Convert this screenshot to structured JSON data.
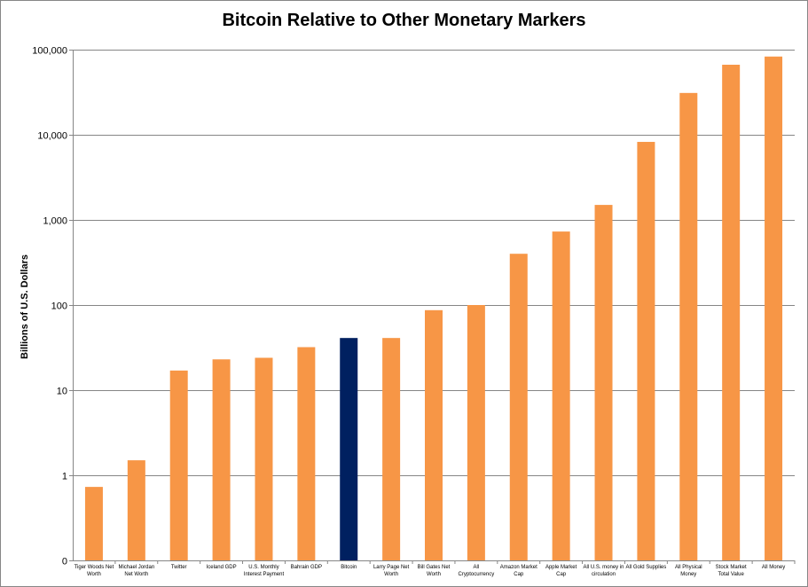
{
  "chart_data": {
    "type": "bar",
    "title": "Bitcoin Relative to Other Monetary Markers",
    "xlabel": "",
    "ylabel": "Billions of U.S. Dollars",
    "yscale": "log",
    "ylim": [
      0.1,
      100000
    ],
    "yticks": [
      {
        "value": 0.1,
        "label": "0"
      },
      {
        "value": 1,
        "label": "1"
      },
      {
        "value": 10,
        "label": "10"
      },
      {
        "value": 100,
        "label": "100"
      },
      {
        "value": 1000,
        "label": "1,000"
      },
      {
        "value": 10000,
        "label": "10,000"
      },
      {
        "value": 100000,
        "label": "100,000"
      }
    ],
    "grid": true,
    "categories": [
      [
        "Tiger Woods Net",
        "Worth"
      ],
      [
        "Michael Jordan",
        "Net Worth"
      ],
      [
        "Twitter"
      ],
      [
        "Iceland GDP"
      ],
      [
        "U.S. Monthly",
        "Interest Payment"
      ],
      [
        "Bahrain GDP"
      ],
      [
        "Bitcoin"
      ],
      [
        "Larry Page Net",
        "Worth"
      ],
      [
        "Bill Gates Net",
        "Worth"
      ],
      [
        "All",
        "Cryptocurrency"
      ],
      [
        "Amazon Market",
        "Cap"
      ],
      [
        "Apple Market",
        "Cap"
      ],
      [
        "All U.S. money in",
        "circulation"
      ],
      [
        "All Gold Supplies"
      ],
      [
        "All Physical",
        "Money"
      ],
      [
        "Stock Market",
        "Total Value"
      ],
      [
        "All Money"
      ]
    ],
    "values": [
      0.73,
      1.5,
      17,
      23,
      24,
      32,
      41,
      41,
      87,
      100,
      400,
      730,
      1500,
      8250,
      31000,
      66500,
      83000
    ],
    "highlight_index": 6,
    "colors": {
      "default": "#F79646",
      "highlight": "#002060"
    }
  }
}
